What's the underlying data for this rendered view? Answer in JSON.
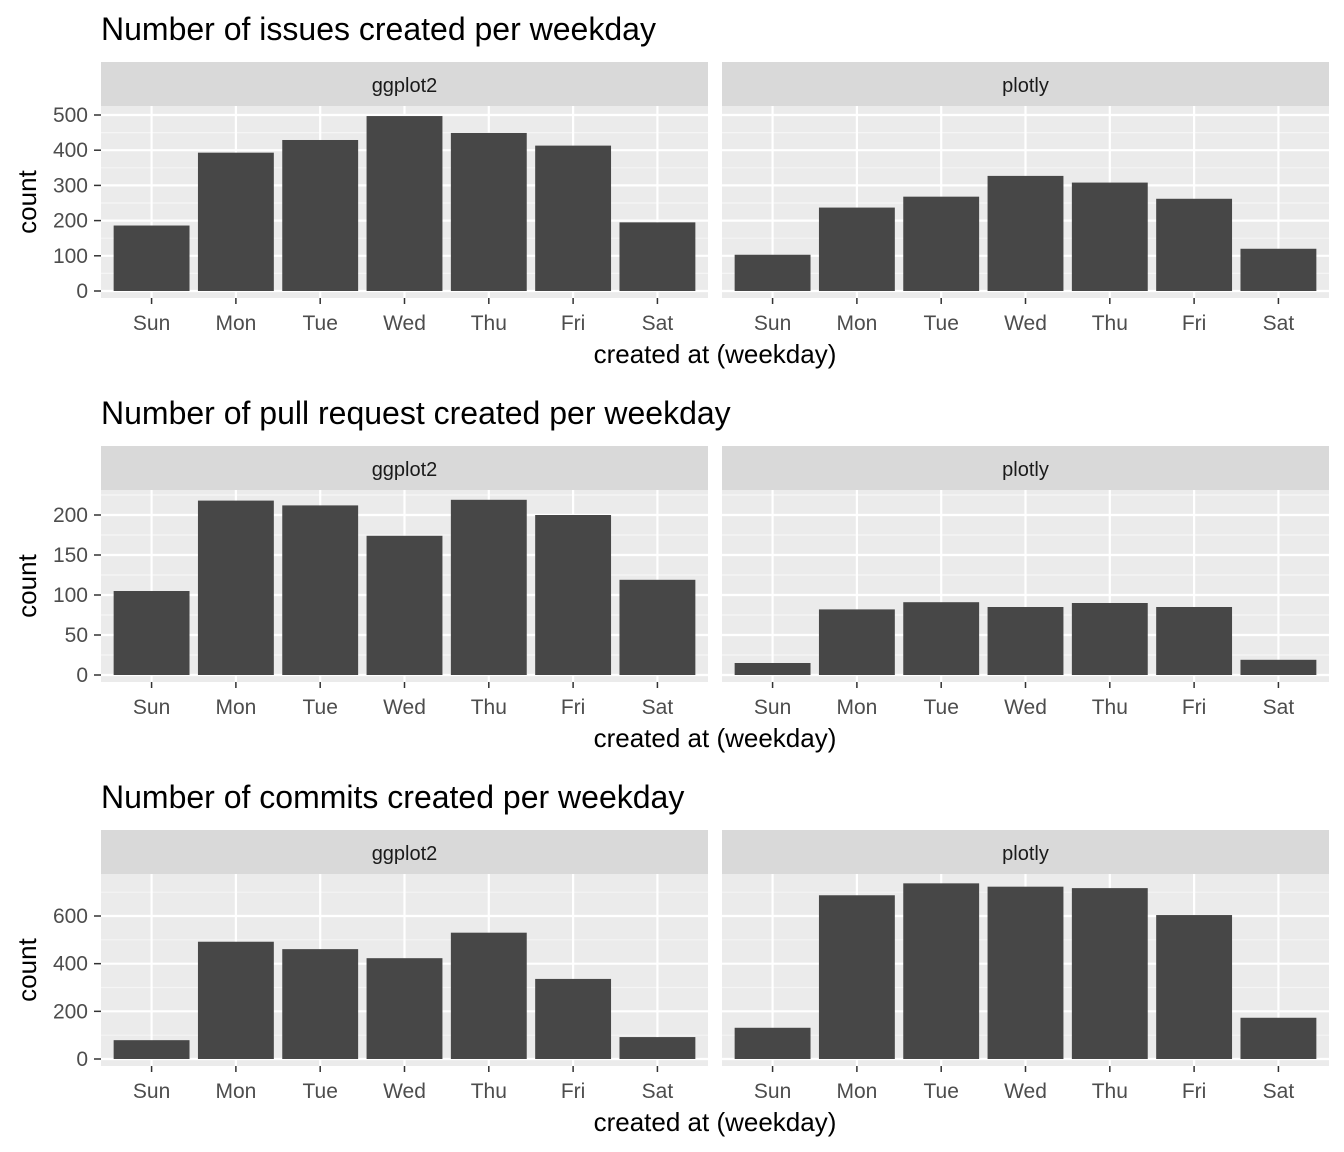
{
  "chart_data": [
    {
      "type": "bar",
      "title": "Number of issues created per weekday",
      "xlabel": "created at (weekday)",
      "ylabel": "count",
      "categories": [
        "Sun",
        "Mon",
        "Tue",
        "Wed",
        "Thu",
        "Fri",
        "Sat"
      ],
      "yticks": [
        0,
        100,
        200,
        300,
        400,
        500
      ],
      "ylim": [
        0,
        500
      ],
      "panels": [
        {
          "name": "ggplot2",
          "values": [
            186,
            393,
            429,
            497,
            449,
            413,
            195
          ]
        },
        {
          "name": "plotly",
          "values": [
            103,
            237,
            268,
            327,
            308,
            262,
            120
          ]
        }
      ]
    },
    {
      "type": "bar",
      "title": "Number of pull request created per weekday",
      "xlabel": "created at (weekday)",
      "ylabel": "count",
      "categories": [
        "Sun",
        "Mon",
        "Tue",
        "Wed",
        "Thu",
        "Fri",
        "Sat"
      ],
      "yticks": [
        0,
        50,
        100,
        150,
        200
      ],
      "ylim": [
        0,
        218
      ],
      "panels": [
        {
          "name": "ggplot2",
          "values": [
            105,
            218,
            212,
            174,
            219,
            200,
            119
          ]
        },
        {
          "name": "plotly",
          "values": [
            15,
            82,
            91,
            85,
            90,
            85,
            19
          ]
        }
      ]
    },
    {
      "type": "bar",
      "title": "Number of commits created per weekday",
      "xlabel": "created at (weekday)",
      "ylabel": "count",
      "categories": [
        "Sun",
        "Mon",
        "Tue",
        "Wed",
        "Thu",
        "Fri",
        "Sat"
      ],
      "yticks": [
        0,
        200,
        400,
        600
      ],
      "ylim": [
        0,
        740
      ],
      "panels": [
        {
          "name": "ggplot2",
          "values": [
            79,
            492,
            461,
            423,
            530,
            336,
            92
          ]
        },
        {
          "name": "plotly",
          "values": [
            131,
            687,
            737,
            723,
            717,
            604,
            173
          ]
        }
      ]
    }
  ],
  "colors": {
    "bar": "#474747",
    "panel_background": "#ebebeb",
    "strip_background": "#d9d9d9",
    "grid_major": "#ffffff",
    "grid_minor": "#f5f5f5",
    "tick_text": "#4d4d4d"
  }
}
